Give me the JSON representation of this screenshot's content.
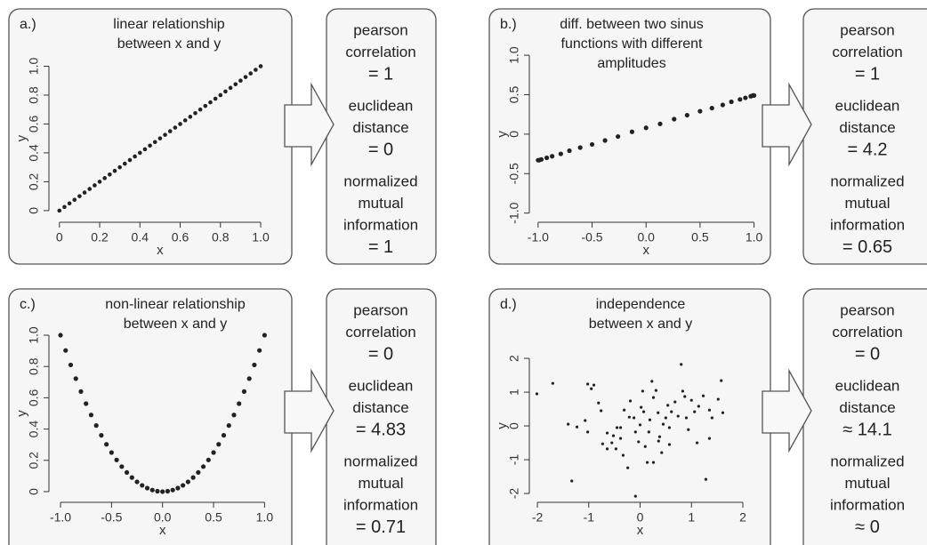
{
  "chart_data": [
    {
      "type": "scatter",
      "panel_label": "a.)",
      "title": [
        "linear relationship",
        "between x and y"
      ],
      "xlabel": "x",
      "ylabel": "y",
      "color": "#222222",
      "x": [
        0,
        0.025,
        0.05,
        0.075,
        0.1,
        0.125,
        0.15,
        0.175,
        0.2,
        0.225,
        0.25,
        0.275,
        0.3,
        0.325,
        0.35,
        0.375,
        0.4,
        0.425,
        0.45,
        0.475,
        0.5,
        0.525,
        0.55,
        0.575,
        0.6,
        0.625,
        0.65,
        0.675,
        0.7,
        0.725,
        0.75,
        0.775,
        0.8,
        0.825,
        0.85,
        0.875,
        0.9,
        0.925,
        0.95,
        0.975,
        1
      ],
      "values": [
        0,
        0.025,
        0.05,
        0.075,
        0.1,
        0.125,
        0.15,
        0.175,
        0.2,
        0.225,
        0.25,
        0.275,
        0.3,
        0.325,
        0.35,
        0.375,
        0.4,
        0.425,
        0.45,
        0.475,
        0.5,
        0.525,
        0.55,
        0.575,
        0.6,
        0.625,
        0.65,
        0.675,
        0.7,
        0.725,
        0.75,
        0.775,
        0.8,
        0.825,
        0.85,
        0.875,
        0.9,
        0.925,
        0.95,
        0.975,
        1
      ],
      "xlim": [
        -0.03,
        1.075
      ],
      "ylim": [
        -0.05,
        1.12
      ],
      "xticks": [
        0,
        0.2,
        0.4,
        0.6,
        0.8,
        {
          "value": 1,
          "label": "1.0"
        }
      ],
      "yticks": [
        0,
        0.2,
        0.4,
        0.6,
        0.8,
        {
          "value": 1,
          "label": "1.0"
        }
      ]
    },
    {
      "type": "scatter",
      "panel_label": "b.)",
      "title": [
        "diff. between two sinus",
        "functions with different",
        "amplitudes"
      ],
      "xlabel": "x",
      "ylabel": "y",
      "color": "#222222",
      "x": [
        -1,
        -0.99,
        -0.97,
        -0.92,
        -0.87,
        -0.79,
        -0.71,
        -0.61,
        -0.5,
        -0.38,
        -0.26,
        -0.13,
        0,
        0.13,
        0.26,
        0.38,
        0.5,
        0.61,
        0.71,
        0.79,
        0.87,
        0.92,
        0.97,
        0.99,
        1
      ],
      "values": [
        -0.33,
        -0.33,
        -0.32,
        -0.3,
        -0.28,
        -0.25,
        -0.21,
        -0.17,
        -0.13,
        -0.08,
        -0.03,
        0.03,
        0.08,
        0.13,
        0.19,
        0.24,
        0.29,
        0.33,
        0.37,
        0.41,
        0.44,
        0.46,
        0.48,
        0.49,
        0.49
      ],
      "xlim": [
        -1.04,
        1.02
      ],
      "ylim": [
        -1.06,
        1.08
      ],
      "xticks": [
        {
          "value": -1,
          "label": "-1.0"
        },
        -0.5,
        {
          "value": 0,
          "label": "0.0"
        },
        0.5,
        {
          "value": 1,
          "label": "1.0"
        }
      ],
      "yticks": [
        {
          "value": -1,
          "label": "-1.0"
        },
        -0.5,
        0,
        0.5,
        {
          "value": 1,
          "label": "1.0"
        }
      ]
    },
    {
      "type": "scatter",
      "panel_label": "c.)",
      "title": [
        "non-linear relationship",
        "between x and y"
      ],
      "xlabel": "x",
      "ylabel": "y",
      "color": "#222222",
      "x": [
        -1,
        -0.95,
        -0.9,
        -0.85,
        -0.8,
        -0.75,
        -0.7,
        -0.65,
        -0.6,
        -0.55,
        -0.5,
        -0.45,
        -0.4,
        -0.35,
        -0.3,
        -0.25,
        -0.2,
        -0.15,
        -0.1,
        -0.05,
        0,
        0.05,
        0.1,
        0.15,
        0.2,
        0.25,
        0.3,
        0.35,
        0.4,
        0.45,
        0.5,
        0.55,
        0.6,
        0.65,
        0.7,
        0.75,
        0.8,
        0.85,
        0.9,
        0.95,
        1
      ],
      "values": [
        1,
        0.9025,
        0.81,
        0.7225,
        0.64,
        0.5625,
        0.49,
        0.4225,
        0.36,
        0.3025,
        0.25,
        0.2025,
        0.16,
        0.1225,
        0.09,
        0.0625,
        0.04,
        0.0225,
        0.01,
        0.0025,
        0,
        0.0025,
        0.01,
        0.0225,
        0.04,
        0.0625,
        0.09,
        0.1225,
        0.16,
        0.2025,
        0.25,
        0.3025,
        0.36,
        0.4225,
        0.49,
        0.5625,
        0.64,
        0.7225,
        0.81,
        0.9025,
        1
      ],
      "xlim": [
        -1.07,
        1.11
      ],
      "ylim": [
        -0.04,
        1.04
      ],
      "xticks": [
        {
          "value": -1,
          "label": "-1.0"
        },
        -0.5,
        {
          "value": 0,
          "label": "0.0"
        },
        0.5,
        {
          "value": 1,
          "label": "1.0"
        }
      ],
      "yticks": [
        0,
        0.2,
        0.4,
        0.6,
        0.8,
        {
          "value": 1,
          "label": "1.0"
        }
      ]
    },
    {
      "type": "scatter",
      "panel_label": "d.)",
      "title": [
        "independence",
        "between x and y"
      ],
      "xlabel": "x",
      "ylabel": "y",
      "color": "#222222",
      "x": [
        -2.01,
        -1.7,
        -1.33,
        -1.4,
        -1.07,
        -1.02,
        -0.95,
        -0.9,
        -0.81,
        -0.76,
        -1.23,
        -1.02,
        -0.73,
        -0.64,
        -0.52,
        -0.45,
        -0.38,
        -0.47,
        -0.33,
        -0.24,
        -0.21,
        -0.19,
        -0.12,
        -0.09,
        -0.03,
        0,
        0.02,
        0.05,
        0.07,
        0.1,
        0.14,
        0.17,
        0.19,
        0.23,
        0.26,
        0.31,
        0.35,
        0.38,
        0.42,
        0.45,
        0.5,
        0.54,
        0.57,
        0.61,
        0.68,
        0.74,
        0.8,
        0.83,
        0.87,
        0.9,
        0.94,
        1,
        1.06,
        1.11,
        1.14,
        1.23,
        1.28,
        1.35,
        1.4,
        1.52,
        1.58,
        1.61,
        1.35,
        -0.09,
        -0.64,
        -0.55,
        -0.31,
        -0.38,
        0.36,
        0.57,
        0.26
      ],
      "values": [
        0.95,
        1.26,
        -1.63,
        0.05,
        0.16,
        1.24,
        1.1,
        1.21,
        0.68,
        0.45,
        -0.03,
        -0.18,
        -0.53,
        -0.21,
        -0.29,
        -0.05,
        -0.37,
        -0.68,
        -0.87,
        -1.24,
        0.26,
        0.74,
        0.24,
        -0.18,
        -0.47,
        0.03,
        0.55,
        1.03,
        0.42,
        -0.61,
        -1.08,
        -0.18,
        0.18,
        1.32,
        0.84,
        1.05,
        0.39,
        -0.32,
        -0.79,
        0.05,
        0.24,
        0.61,
        -0.05,
        0.42,
        0.71,
        0.29,
        1.82,
        1.03,
        0.87,
        0.24,
        -0.11,
        0.76,
        0.42,
        -0.5,
        0.58,
        0.89,
        -1.58,
        0.47,
        0.24,
        0.79,
        1.34,
        0.39,
        -0.37,
        -2.08,
        -0.68,
        -0.5,
        0.47,
        -0.05,
        -0.45,
        -0.55,
        -1.08
      ],
      "xlim": [
        -2.07,
        2.26
      ],
      "ylim": [
        -2.13,
        2.87
      ],
      "xticks": [
        -2,
        -1,
        0,
        1,
        2
      ],
      "yticks": [
        -2,
        -1,
        0,
        1,
        2
      ]
    }
  ],
  "metrics": [
    [
      {
        "name": [
          "pearson",
          "correlation"
        ],
        "value": "= 1"
      },
      {
        "name": [
          "euclidean",
          "distance"
        ],
        "value": "= 0"
      },
      {
        "name": [
          "normalized",
          "mutual",
          "information"
        ],
        "value": "= 1"
      }
    ],
    [
      {
        "name": [
          "pearson",
          "correlation"
        ],
        "value": "= 1"
      },
      {
        "name": [
          "euclidean",
          "distance"
        ],
        "value": "= 4.2"
      },
      {
        "name": [
          "normalized",
          "mutual",
          "information"
        ],
        "value": "= 0.65"
      }
    ],
    [
      {
        "name": [
          "pearson",
          "correlation"
        ],
        "value": "= 0"
      },
      {
        "name": [
          "euclidean",
          "distance"
        ],
        "value": "= 4.83"
      },
      {
        "name": [
          "normalized",
          "mutual",
          "information"
        ],
        "value": "= 0.71"
      }
    ],
    [
      {
        "name": [
          "pearson",
          "correlation"
        ],
        "value": "= 0"
      },
      {
        "name": [
          "euclidean",
          "distance"
        ],
        "value": "≈ 14.1"
      },
      {
        "name": [
          "normalized",
          "mutual",
          "information"
        ],
        "value": "≈ 0"
      }
    ]
  ]
}
